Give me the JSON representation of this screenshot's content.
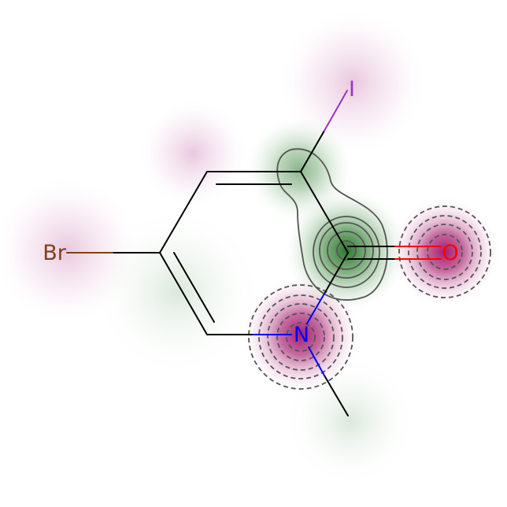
{
  "molecule": {
    "atoms": [
      {
        "id": "br",
        "symbol": "Br",
        "color": "#7f3f1f"
      },
      {
        "id": "i",
        "symbol": "I",
        "color": "#9932cc"
      },
      {
        "id": "o",
        "symbol": "O",
        "color": "#ff0000"
      },
      {
        "id": "n",
        "symbol": "N",
        "color": "#0000ff"
      }
    ]
  },
  "colors": {
    "bond": "#000000",
    "positive_contribution": "#2e7d32",
    "negative_contribution": "#a0106a",
    "contour_line": "#555555"
  }
}
